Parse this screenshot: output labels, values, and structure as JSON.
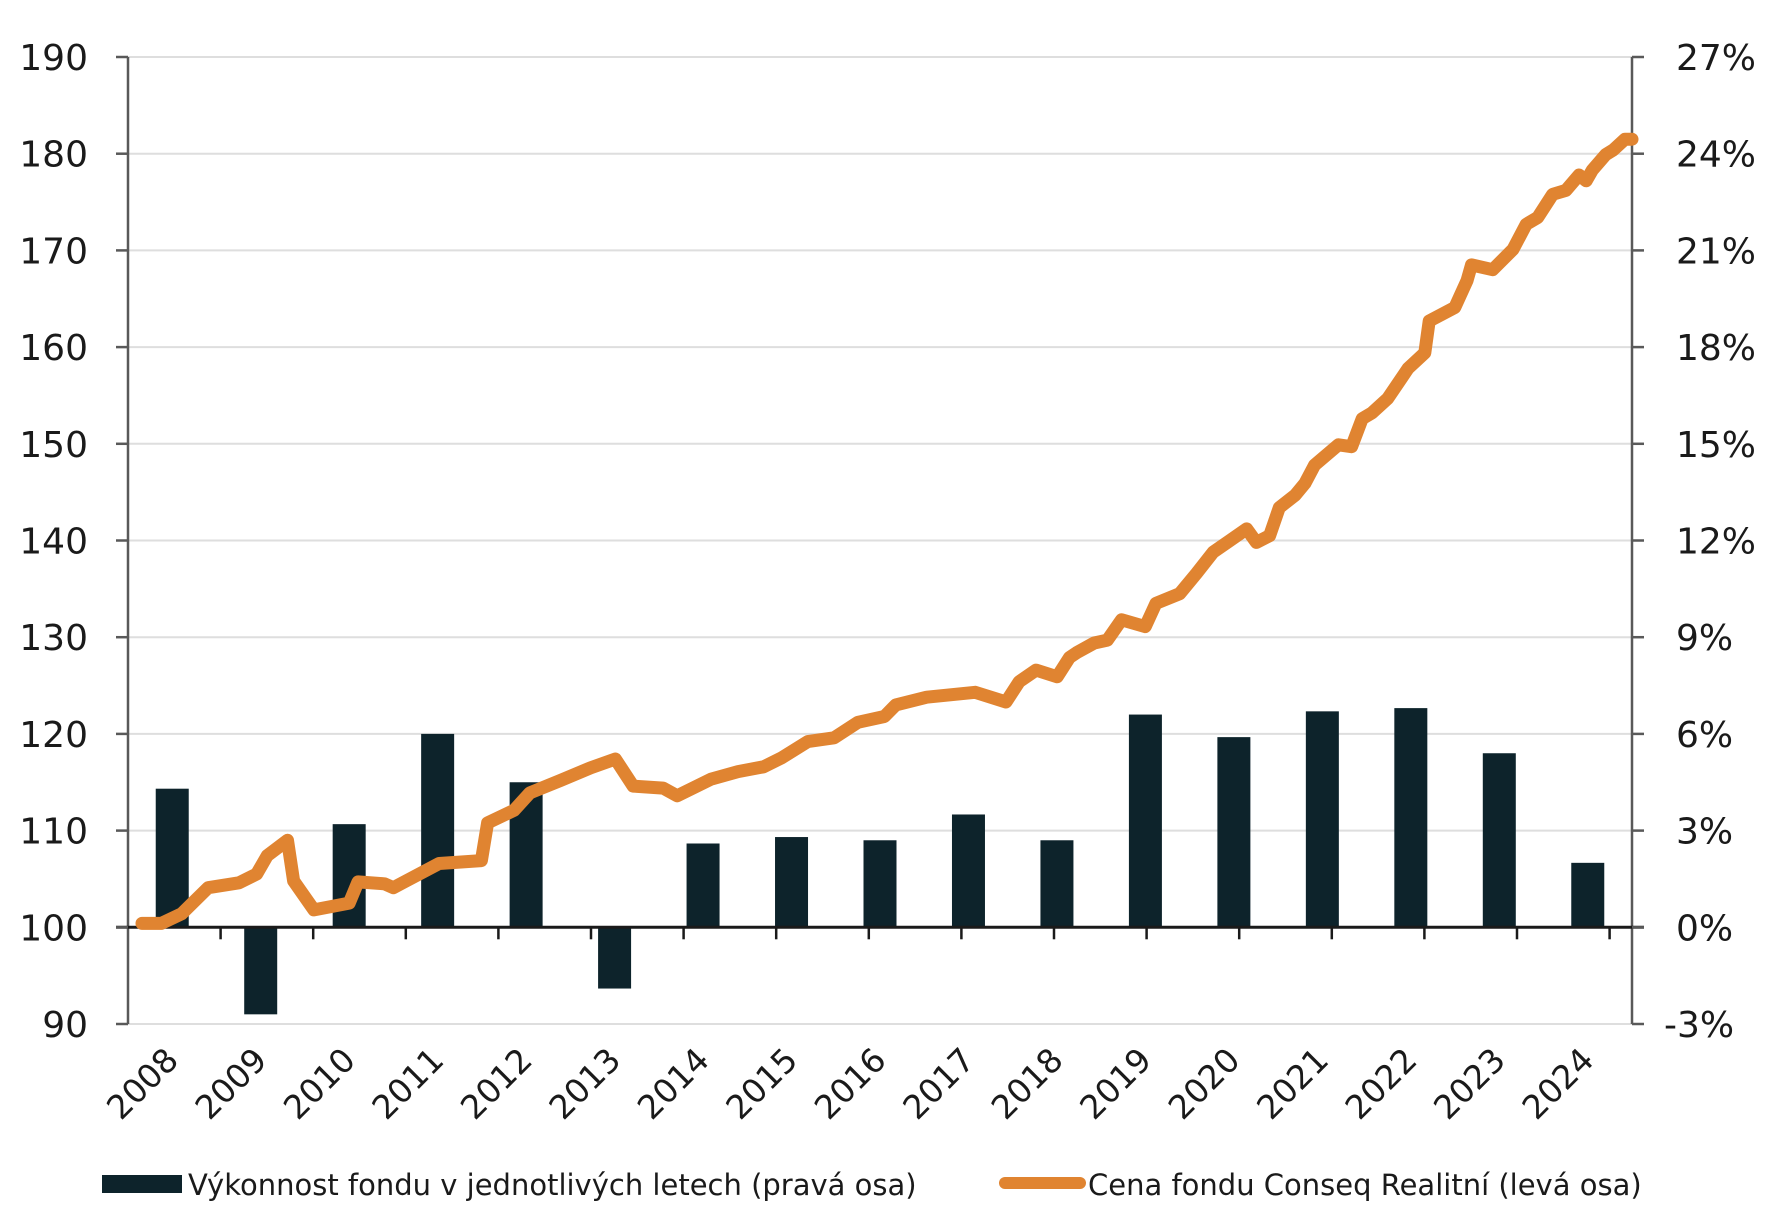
{
  "chart_data": {
    "type": "bar+line",
    "title": "",
    "categories": [
      "2008",
      "2009",
      "2010",
      "2011",
      "2012",
      "2013",
      "2014",
      "2015",
      "2016",
      "2017",
      "2018",
      "2019",
      "2020",
      "2021",
      "2022",
      "2023",
      "2024"
    ],
    "left_axis": {
      "label": "",
      "ylim": [
        90,
        190
      ],
      "ticks": [
        "190",
        "180",
        "170",
        "160",
        "150",
        "140",
        "130",
        "120",
        "110",
        "100",
        "90"
      ],
      "tick_values": [
        190,
        180,
        170,
        160,
        150,
        140,
        130,
        120,
        110,
        100,
        90
      ]
    },
    "right_axis": {
      "label": "",
      "ylim": [
        -3,
        27
      ],
      "ticks": [
        "27%",
        "24%",
        "21%",
        "18%",
        "15%",
        "12%",
        "9%",
        "6%",
        "3%",
        "0%",
        "-3%"
      ],
      "tick_values": [
        27,
        24,
        21,
        18,
        15,
        12,
        9,
        6,
        3,
        0,
        -3
      ]
    },
    "grid": true,
    "legend_position": "bottom",
    "series": [
      {
        "name": "Výkonnost fondu v jednotlivých letech (pravá osa)",
        "type": "bar",
        "axis": "right",
        "color": "#0D232B",
        "values": [
          4.3,
          -2.7,
          3.2,
          6.0,
          4.5,
          -1.9,
          2.6,
          2.8,
          2.7,
          3.5,
          2.7,
          6.6,
          5.9,
          6.7,
          6.8,
          5.4,
          2.0
        ]
      },
      {
        "name": "Cena fondu Conseq Realitní (levá osa)",
        "type": "line",
        "axis": "left",
        "color": "#E08431",
        "x": [
          2008.0,
          2008.22,
          2008.45,
          2008.75,
          2009.1,
          2009.3,
          2009.42,
          2009.65,
          2009.72,
          2009.95,
          2010.35,
          2010.45,
          2010.75,
          2010.85,
          2011.37,
          2011.85,
          2011.92,
          2012.22,
          2012.4,
          2012.75,
          2013.09,
          2013.37,
          2013.57,
          2013.91,
          2014.07,
          2014.45,
          2014.76,
          2015.05,
          2015.25,
          2015.55,
          2015.85,
          2016.12,
          2016.42,
          2016.55,
          2016.9,
          2017.45,
          2017.8,
          2017.95,
          2018.14,
          2018.38,
          2018.52,
          2018.6,
          2018.8,
          2018.95,
          2019.11,
          2019.38,
          2019.5,
          2019.77,
          2019.96,
          2020.15,
          2020.34,
          2020.53,
          2020.64,
          2020.79,
          2020.9,
          2021.08,
          2021.19,
          2021.3,
          2021.57,
          2021.72,
          2021.84,
          2021.95,
          2022.13,
          2022.36,
          2022.55,
          2022.6,
          2022.89,
          2023.03,
          2023.08,
          2023.32,
          2023.55,
          2023.7,
          2023.83,
          2024.0,
          2024.15,
          2024.3,
          2024.38,
          2024.45,
          2024.6,
          2024.69,
          2024.82,
          2024.9
        ],
        "values": [
          100.4,
          100.4,
          101.4,
          104.1,
          104.6,
          105.5,
          107.4,
          109.0,
          104.8,
          101.8,
          102.5,
          104.7,
          104.5,
          104.1,
          106.6,
          106.9,
          110.8,
          112.1,
          113.9,
          115.2,
          116.5,
          117.4,
          114.6,
          114.4,
          113.6,
          115.3,
          116.1,
          116.6,
          117.5,
          119.2,
          119.6,
          121.2,
          121.8,
          123.0,
          123.8,
          124.3,
          123.3,
          125.4,
          126.6,
          125.9,
          127.9,
          128.4,
          129.4,
          129.7,
          131.8,
          131.1,
          133.5,
          134.5,
          136.6,
          138.8,
          140.0,
          141.2,
          139.8,
          140.5,
          143.4,
          144.7,
          145.9,
          147.8,
          149.9,
          149.7,
          152.6,
          153.2,
          154.7,
          157.8,
          159.4,
          162.7,
          164.1,
          166.9,
          168.5,
          168.0,
          170.1,
          172.7,
          173.4,
          175.8,
          176.2,
          177.8,
          177.2,
          178.3,
          179.9,
          180.4,
          181.5,
          181.5
        ]
      }
    ]
  }
}
